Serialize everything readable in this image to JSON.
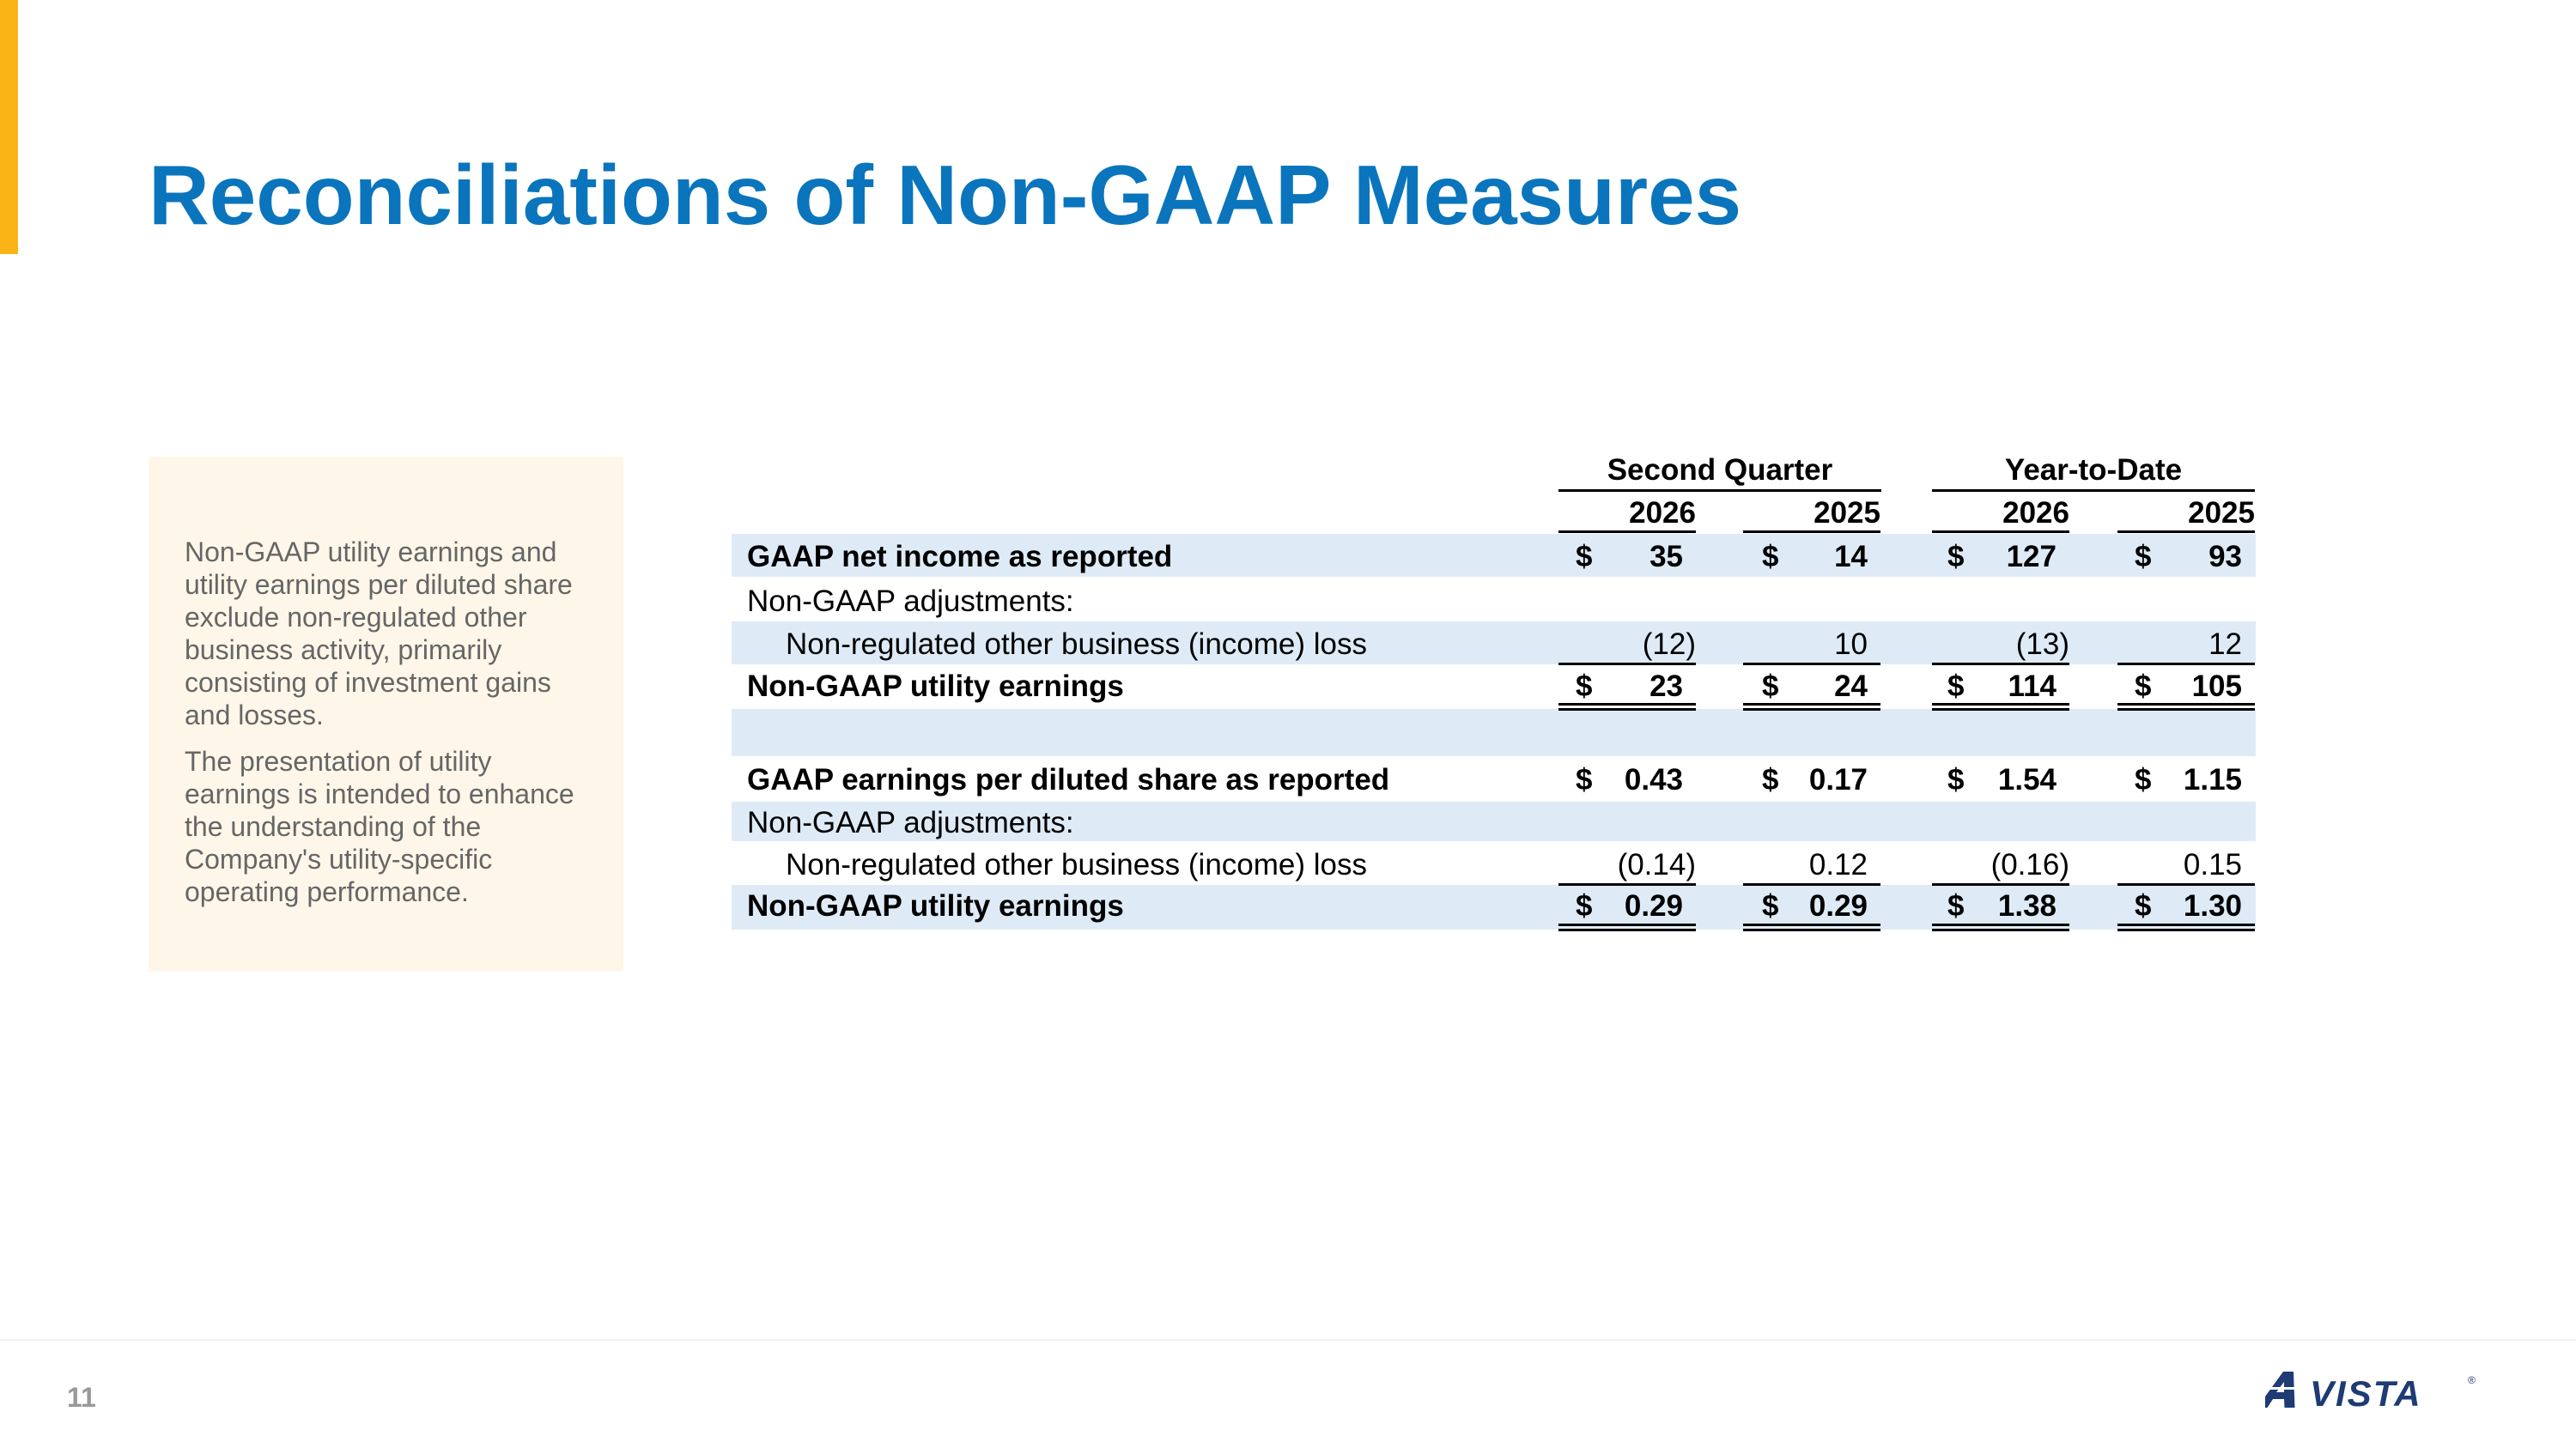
{
  "title": "Reconciliations of Non-GAAP Measures",
  "note": {
    "paragraph1": "Non-GAAP utility earnings and utility earnings per diluted share exclude non-regulated other business activity, primarily consisting of investment gains and losses.",
    "paragraph2": "The presentation of utility earnings is intended to enhance the understanding of the Company's utility-specific operating performance."
  },
  "table": {
    "group_headers": [
      "Second Quarter",
      "Year-to-Date"
    ],
    "year_headers": [
      "2026",
      "2025",
      "2026",
      "2025"
    ],
    "currency_symbol": "$",
    "rows": [
      {
        "label": "GAAP net income as reported",
        "values": [
          "35",
          "14",
          "127",
          "93"
        ]
      },
      {
        "label": "Non-GAAP adjustments:",
        "values": [
          "",
          "",
          "",
          ""
        ]
      },
      {
        "label": "Non-regulated other business (income) loss",
        "values": [
          "(12)",
          "10",
          "(13)",
          "12"
        ]
      },
      {
        "label": "Non-GAAP utility earnings",
        "values": [
          "23",
          "24",
          "114",
          "105"
        ]
      },
      {
        "label": "",
        "values": [
          "",
          "",
          "",
          ""
        ]
      },
      {
        "label": "GAAP earnings per diluted share as reported",
        "values": [
          "0.43",
          "0.17",
          "1.54",
          "1.15"
        ]
      },
      {
        "label": "Non-GAAP adjustments:",
        "values": [
          "",
          "",
          "",
          ""
        ]
      },
      {
        "label": "Non-regulated other business (income) loss",
        "values": [
          "(0.14)",
          "0.12",
          "(0.16)",
          "0.15"
        ]
      },
      {
        "label": "Non-GAAP utility earnings",
        "values": [
          "0.29",
          "0.29",
          "1.38",
          "1.30"
        ]
      }
    ]
  },
  "footer": {
    "page_number": "11",
    "logo_text": "AVISTA",
    "logo_mark": "®"
  },
  "colors": {
    "title_blue": "#0A75BC",
    "accent_yellow": "#FBB415",
    "note_background": "#FEF7E9",
    "row_stripe": "#DEEBF7",
    "logo_navy": "#1F3B73"
  }
}
